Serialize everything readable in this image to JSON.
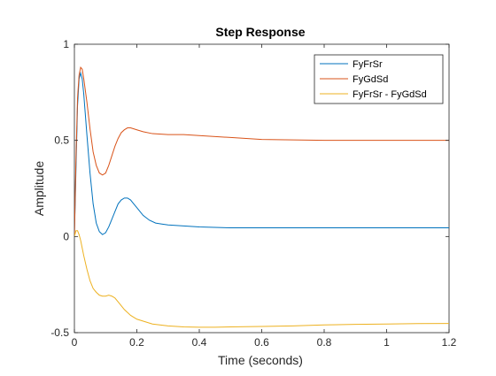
{
  "chart_data": {
    "type": "line",
    "title": "Step Response",
    "xlabel": "Time (seconds)",
    "ylabel": "Amplitude",
    "xlim": [
      0,
      1.2
    ],
    "ylim": [
      -0.5,
      1
    ],
    "xticks": [
      0,
      0.2,
      0.4,
      0.6,
      0.8,
      1,
      1.2
    ],
    "xtick_labels": [
      "0",
      "0.2",
      "0.4",
      "0.6",
      "0.8",
      "1",
      "1.2"
    ],
    "yticks": [
      -0.5,
      0,
      0.5,
      1
    ],
    "ytick_labels": [
      "-0.5",
      "0",
      "0.5",
      "1"
    ],
    "grid": false,
    "legend_position": "top-right",
    "series": [
      {
        "name": "FyFrSr",
        "color": "#0072BD",
        "x": [
          0,
          0.005,
          0.01,
          0.015,
          0.02,
          0.025,
          0.03,
          0.04,
          0.05,
          0.06,
          0.07,
          0.08,
          0.09,
          0.1,
          0.11,
          0.12,
          0.13,
          0.14,
          0.15,
          0.16,
          0.17,
          0.18,
          0.19,
          0.2,
          0.22,
          0.24,
          0.26,
          0.28,
          0.3,
          0.35,
          0.4,
          0.5,
          0.6,
          0.8,
          1.0,
          1.2
        ],
        "y": [
          0,
          0.35,
          0.68,
          0.82,
          0.85,
          0.82,
          0.74,
          0.53,
          0.33,
          0.17,
          0.07,
          0.025,
          0.01,
          0.02,
          0.05,
          0.09,
          0.13,
          0.17,
          0.19,
          0.2,
          0.2,
          0.19,
          0.17,
          0.15,
          0.11,
          0.085,
          0.07,
          0.065,
          0.06,
          0.055,
          0.05,
          0.045,
          0.045,
          0.045,
          0.045,
          0.045
        ]
      },
      {
        "name": "FyGdSd",
        "color": "#D95319",
        "x": [
          0,
          0.005,
          0.01,
          0.015,
          0.02,
          0.025,
          0.03,
          0.04,
          0.05,
          0.06,
          0.07,
          0.08,
          0.09,
          0.1,
          0.11,
          0.12,
          0.13,
          0.14,
          0.15,
          0.16,
          0.17,
          0.18,
          0.19,
          0.2,
          0.22,
          0.25,
          0.3,
          0.35,
          0.4,
          0.5,
          0.6,
          0.8,
          1.0,
          1.2
        ],
        "y": [
          0,
          0.4,
          0.72,
          0.84,
          0.88,
          0.87,
          0.82,
          0.7,
          0.56,
          0.44,
          0.37,
          0.33,
          0.32,
          0.33,
          0.37,
          0.42,
          0.47,
          0.51,
          0.54,
          0.555,
          0.565,
          0.565,
          0.56,
          0.555,
          0.545,
          0.535,
          0.53,
          0.53,
          0.525,
          0.515,
          0.505,
          0.5,
          0.5,
          0.5
        ]
      },
      {
        "name": "FyFrSr - FyGdSd",
        "color": "#EDB120",
        "x": [
          0,
          0.005,
          0.01,
          0.015,
          0.02,
          0.025,
          0.03,
          0.04,
          0.05,
          0.06,
          0.07,
          0.08,
          0.09,
          0.1,
          0.11,
          0.12,
          0.13,
          0.14,
          0.15,
          0.16,
          0.18,
          0.2,
          0.25,
          0.3,
          0.35,
          0.4,
          0.45,
          0.5,
          0.6,
          0.7,
          0.8,
          0.9,
          1.0,
          1.1,
          1.2
        ],
        "y": [
          0,
          0.03,
          0.03,
          0.01,
          -0.02,
          -0.06,
          -0.1,
          -0.17,
          -0.23,
          -0.27,
          -0.29,
          -0.305,
          -0.31,
          -0.31,
          -0.305,
          -0.31,
          -0.32,
          -0.34,
          -0.36,
          -0.38,
          -0.41,
          -0.43,
          -0.455,
          -0.465,
          -0.47,
          -0.472,
          -0.472,
          -0.47,
          -0.468,
          -0.465,
          -0.46,
          -0.457,
          -0.455,
          -0.453,
          -0.452
        ]
      }
    ]
  }
}
